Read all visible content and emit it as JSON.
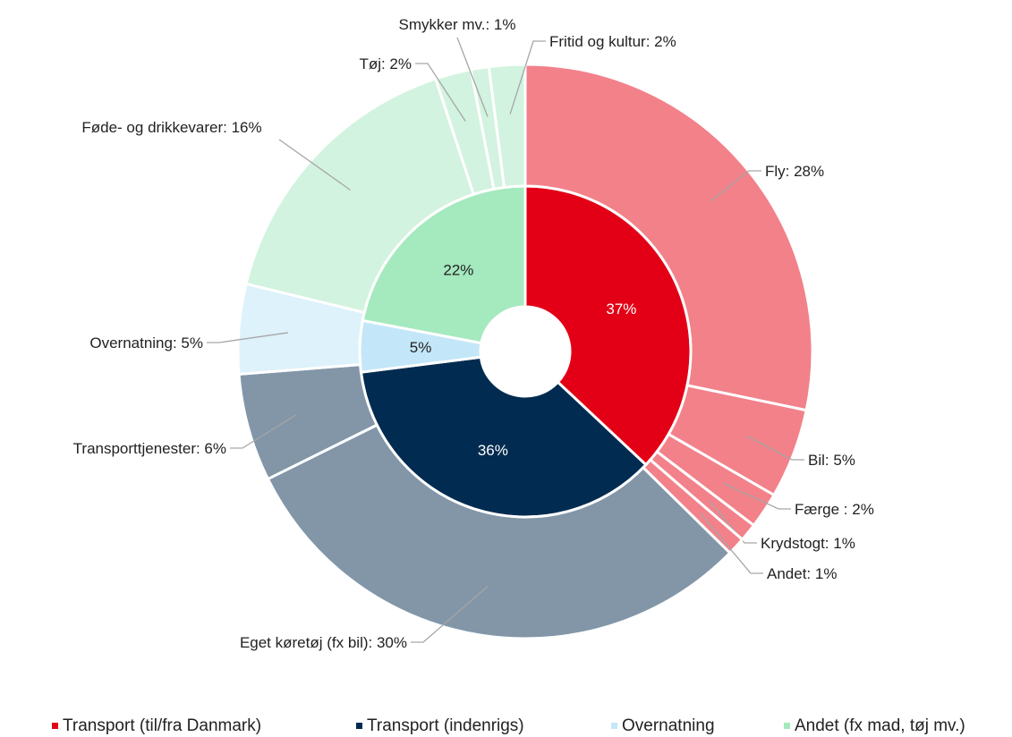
{
  "chart_data": {
    "type": "sunburst",
    "series": [
      {
        "name": "Transport (til/fra Danmark)",
        "color": "#e30016",
        "value": 37,
        "value_label": "37%",
        "child_color": "#f2818a",
        "children": [
          {
            "label": "Fly: 28%",
            "value": 28
          },
          {
            "label": "Bil: 5%",
            "value": 5
          },
          {
            "label": "Færge : 2%",
            "value": 2
          },
          {
            "label": "Krydstogt: 1%",
            "value": 1
          },
          {
            "label": "Andet: 1%",
            "value": 1
          }
        ]
      },
      {
        "name": "Transport (indenrigs)",
        "color": "#012b50",
        "value": 36,
        "value_label": "36%",
        "child_color": "#8296a8",
        "children": [
          {
            "label": "Eget køretøj (fx bil): 30%",
            "value": 30
          },
          {
            "label": "Transporttjenester: 6%",
            "value": 6
          }
        ]
      },
      {
        "name": "Overnatning",
        "color": "#c3e7f8",
        "value": 5,
        "value_label": "5%",
        "child_color": "#ddf2fb",
        "children": [
          {
            "label": "Overnatning: 5%",
            "value": 5
          }
        ]
      },
      {
        "name": "Andet (fx mad, tøj mv.)",
        "color": "#a5e9be",
        "value": 22,
        "value_label": "22%",
        "child_color": "#d2f3df",
        "children": [
          {
            "label": "Føde- og drikkevarer: 16%",
            "value": 16
          },
          {
            "label": "Tøj: 2%",
            "value": 2
          },
          {
            "label": "Smykker mv.: 1%",
            "value": 1
          },
          {
            "label": "Fritid og kultur: 2%",
            "value": 2
          }
        ]
      }
    ]
  }
}
